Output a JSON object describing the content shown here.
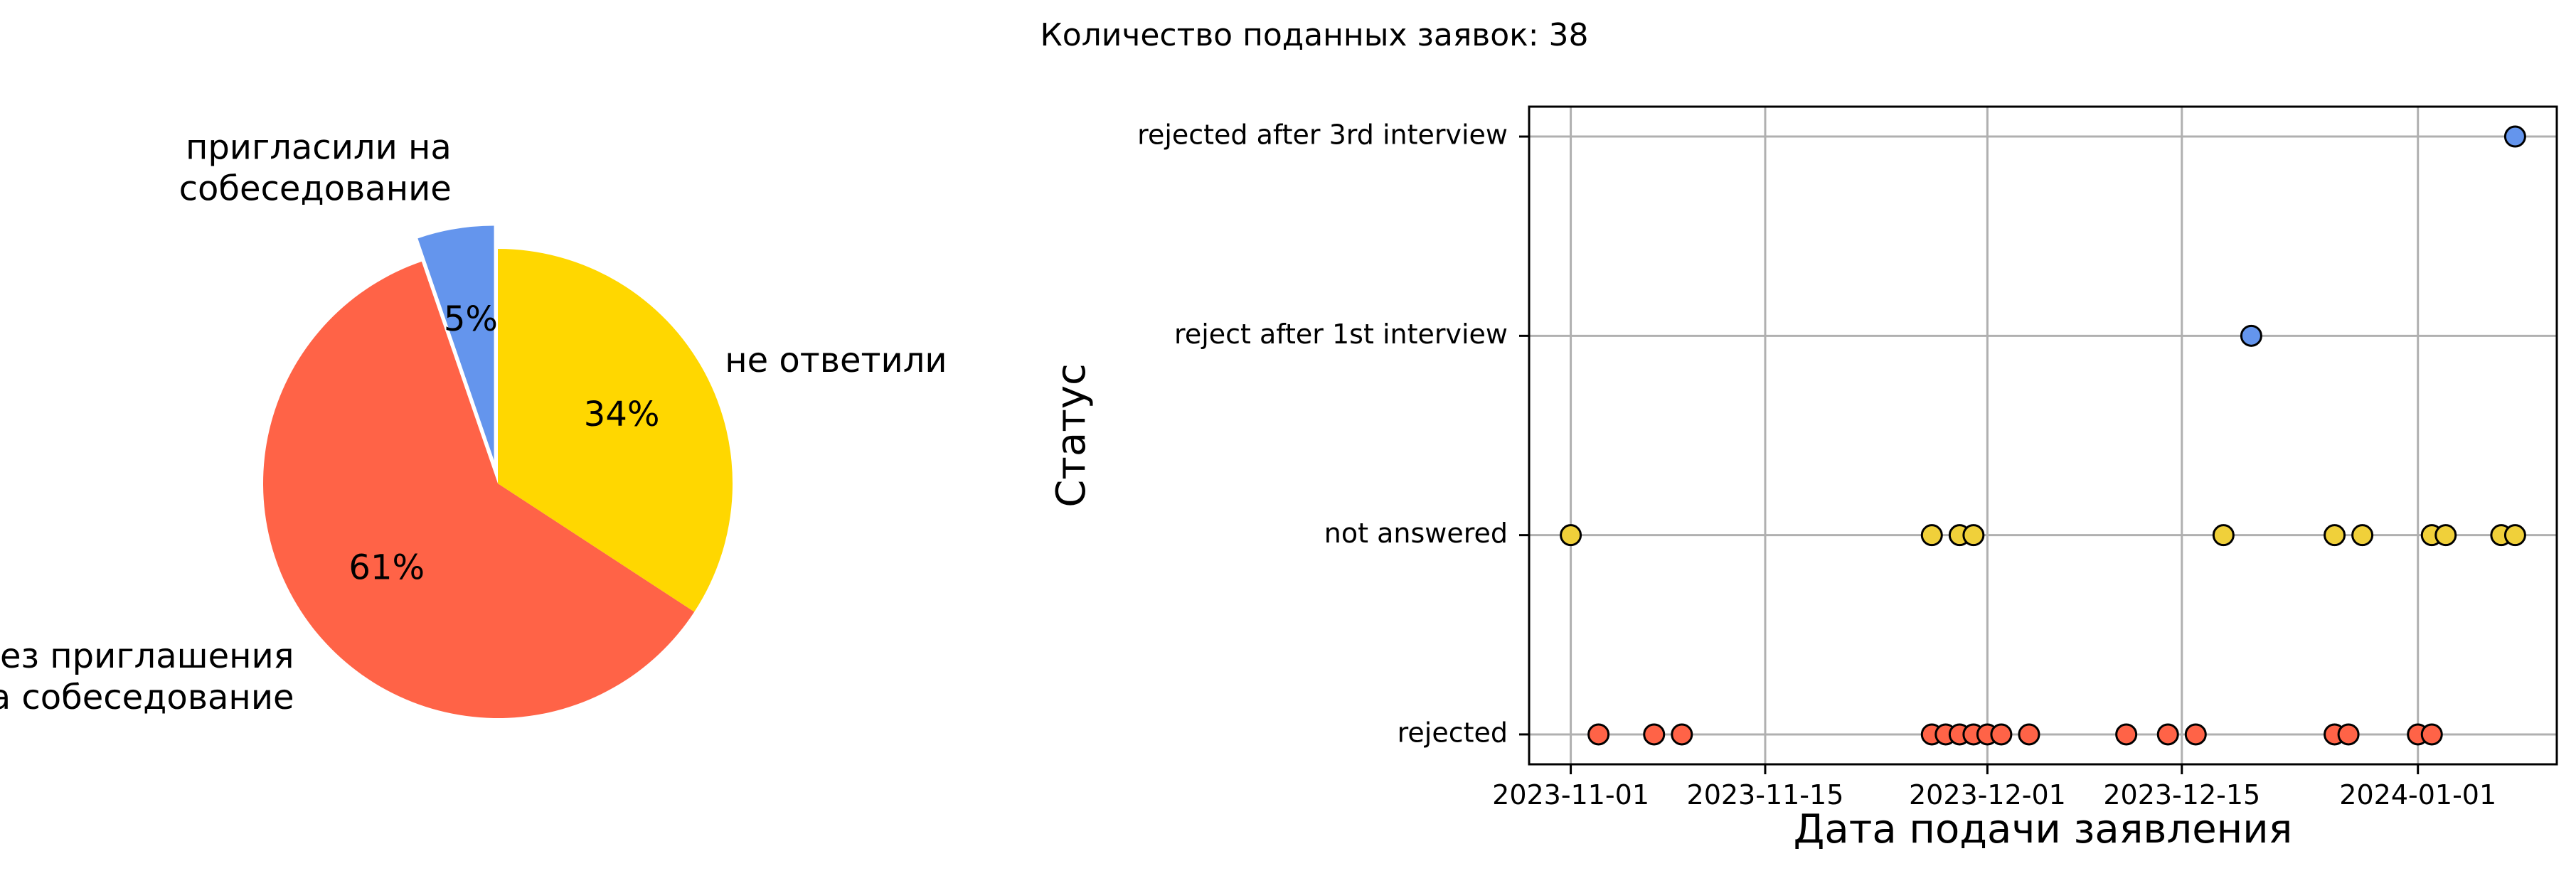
{
  "figure_title": "Количество поданных заявок: 38",
  "colors": {
    "invited": "#6495ED",
    "rejected": "#FF6347",
    "no_answer": "#FFD700",
    "scatter_no_answer": "#F0D03A",
    "grid": "#b0b0b0",
    "marker_edge": "#000000"
  },
  "chart_data": [
    {
      "type": "pie",
      "title": "",
      "start_angle_deg": 90,
      "direction": "counterclockwise",
      "slices": [
        {
          "label": "пригласили на\n собеседование",
          "value": 2,
          "pct": "5%",
          "color": "#6495ED",
          "explode": true
        },
        {
          "label": "отказали без приглашения\n на собеседование",
          "value": 23,
          "pct": "61%",
          "color": "#FF6347",
          "explode": false
        },
        {
          "label": "не ответили",
          "value": 13,
          "pct": "34%",
          "color": "#FFD700",
          "explode": false
        }
      ]
    },
    {
      "type": "scatter",
      "title": "",
      "xlabel": "Дата подачи заявления",
      "ylabel": "Статус",
      "xlim": [
        "2023-10-29",
        "2024-01-11"
      ],
      "x_ticks": [
        "2023-11-01",
        "2023-11-15",
        "2023-12-01",
        "2023-12-15",
        "2024-01-01"
      ],
      "categories": [
        "rejected",
        "not answered",
        "reject after 1st interview",
        "rejected after 3rd interview"
      ],
      "grid": true,
      "series": [
        {
          "category": "rejected after 3rd interview",
          "color": "#6495ED",
          "x": [
            "2024-01-08"
          ]
        },
        {
          "category": "reject after 1st interview",
          "color": "#6495ED",
          "x": [
            "2023-12-20"
          ]
        },
        {
          "category": "not answered",
          "color": "#F0D03A",
          "x": [
            "2023-11-01",
            "2023-11-27",
            "2023-11-29",
            "2023-11-30",
            "2023-12-18",
            "2023-12-26",
            "2023-12-28",
            "2024-01-02",
            "2024-01-03",
            "2024-01-07",
            "2024-01-08"
          ]
        },
        {
          "category": "rejected",
          "color": "#FF6347",
          "x": [
            "2023-11-03",
            "2023-11-07",
            "2023-11-09",
            "2023-11-27",
            "2023-11-28",
            "2023-11-29",
            "2023-11-30",
            "2023-12-01",
            "2023-12-02",
            "2023-12-04",
            "2023-12-11",
            "2023-12-14",
            "2023-12-16",
            "2023-12-26",
            "2023-12-27",
            "2024-01-01",
            "2024-01-02"
          ]
        }
      ]
    }
  ]
}
